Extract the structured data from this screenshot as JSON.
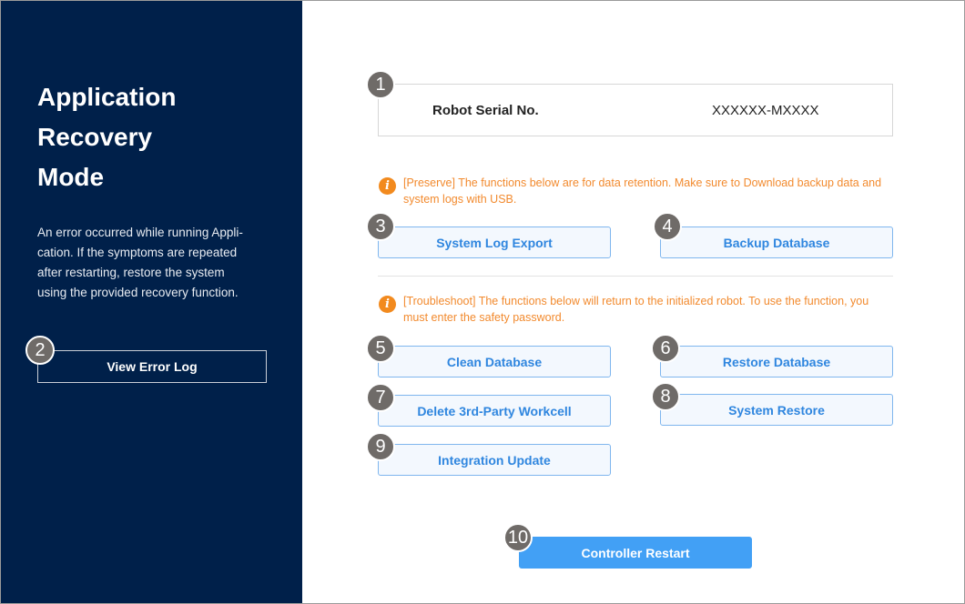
{
  "sidebar": {
    "title": "Application Recovery Mode",
    "description": "An error occurred while running Appli-cation. If the symptoms are repeated after restarting, restore the system using the provided recovery function.",
    "view_error_log": "View Error Log"
  },
  "serial": {
    "label": "Robot Serial No.",
    "value": "XXXXXX-MXXXX"
  },
  "preserve_note": "[Preserve] The functions below are for data retention. Make sure to Download backup data and system logs with USB.",
  "troubleshoot_note": "[Troubleshoot] The functions below will return to the initialized robot. To use the function, you must enter the safety password.",
  "buttons": {
    "system_log_export": "System Log Export",
    "backup_database": "Backup Database",
    "clean_database": "Clean Database",
    "restore_database": "Restore Database",
    "delete_workcell": "Delete 3rd-Party Workcell",
    "system_restore": "System Restore",
    "integration_update": "Integration Update",
    "controller_restart": "Controller Restart"
  },
  "badges": [
    "1",
    "2",
    "3",
    "4",
    "5",
    "6",
    "7",
    "8",
    "9",
    "10"
  ],
  "icons": {
    "info": "info-icon"
  },
  "colors": {
    "sidebar": "#00204a",
    "accent": "#42a0f5",
    "warning": "#f28a2e",
    "badge": "#6f6b68"
  }
}
